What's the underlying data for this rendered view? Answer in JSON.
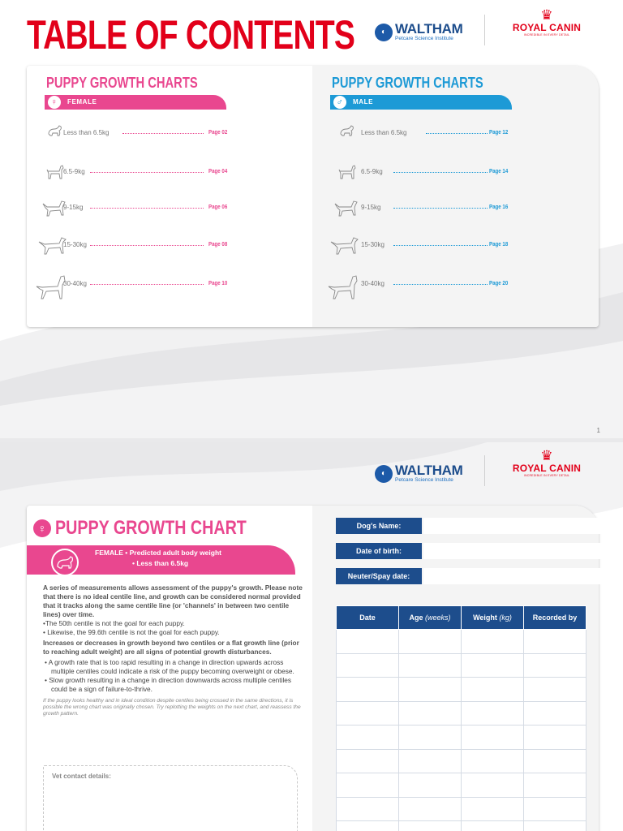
{
  "page1": {
    "title": "TABLE OF CONTENTS",
    "page_number": "1",
    "female": {
      "heading": "PUPPY GROWTH CHARTS",
      "tag": "FEMALE",
      "color": "#e9478f",
      "rows": [
        {
          "label": "Less than 6.5kg",
          "page": "Page 02"
        },
        {
          "label": "6.5-9kg",
          "page": "Page 04"
        },
        {
          "label": "9-15kg",
          "page": "Page 06"
        },
        {
          "label": "15-30kg",
          "page": "Page 08"
        },
        {
          "label": "30-40kg",
          "page": "Page 10"
        }
      ]
    },
    "male": {
      "heading": "PUPPY GROWTH CHARTS",
      "tag": "MALE",
      "color": "#1d9ad6",
      "rows": [
        {
          "label": "Less than 6.5kg",
          "page": "Page 12"
        },
        {
          "label": "6.5-9kg",
          "page": "Page 14"
        },
        {
          "label": "9-15kg",
          "page": "Page 16"
        },
        {
          "label": "15-30kg",
          "page": "Page 18"
        },
        {
          "label": "30-40kg",
          "page": "Page 20"
        }
      ]
    }
  },
  "logos": {
    "waltham_name": "WALTHAM",
    "waltham_sub": "Petcare Science Institute",
    "royal_canin_name": "ROYAL CANIN",
    "royal_canin_sub": "INCREDIBLE IN EVERY DETAIL"
  },
  "page2": {
    "title": "PUPPY GROWTH CHART",
    "banner_line1": "FEMALE • Predicted adult body weight",
    "banner_line2": "• Less than 6.5kg",
    "intro": "A series of measurements allows assessment of the puppy's growth. Please note that there is no ideal centile line, and growth can be considered normal provided that it tracks along the same centile line (or 'channels' in between two centile lines) over time.",
    "intro_bullet1": "•The 50th centile is not the goal for each puppy.",
    "intro_bullet2": "• Likewise, the 99.6th centile is not the goal for each puppy.",
    "warning": "Increases or decreases in growth beyond two centiles or a flat growth line (prior to reaching adult weight) are all signs of potential growth disturbances.",
    "bullet1": "• A growth rate that is too rapid resulting in a change in direction upwards across multiple centiles could indicate a risk of the puppy becoming overweight or obese.",
    "bullet2": "• Slow growth resulting in a change in direction downwards across multiple centiles could be a sign of failure-to-thrive.",
    "note": "If the puppy looks healthy and in ideal condition despite centiles being crossed in the same directions, it is possible the wrong chart was originally chosen. Try replotting the weights on the next chart, and reassess the growth pattern.",
    "vet_label": "Vet contact details:",
    "fields": {
      "dog_name": "Dog's Name:",
      "dob": "Date of birth:",
      "neuter": "Neuter/Spay date:"
    },
    "table": {
      "col1": "Date",
      "col2": "Age",
      "col2_unit": "(weeks)",
      "col3": "Weight",
      "col3_unit": "(kg)",
      "col4": "Recorded by",
      "header_color": "#1d4d8c"
    }
  }
}
